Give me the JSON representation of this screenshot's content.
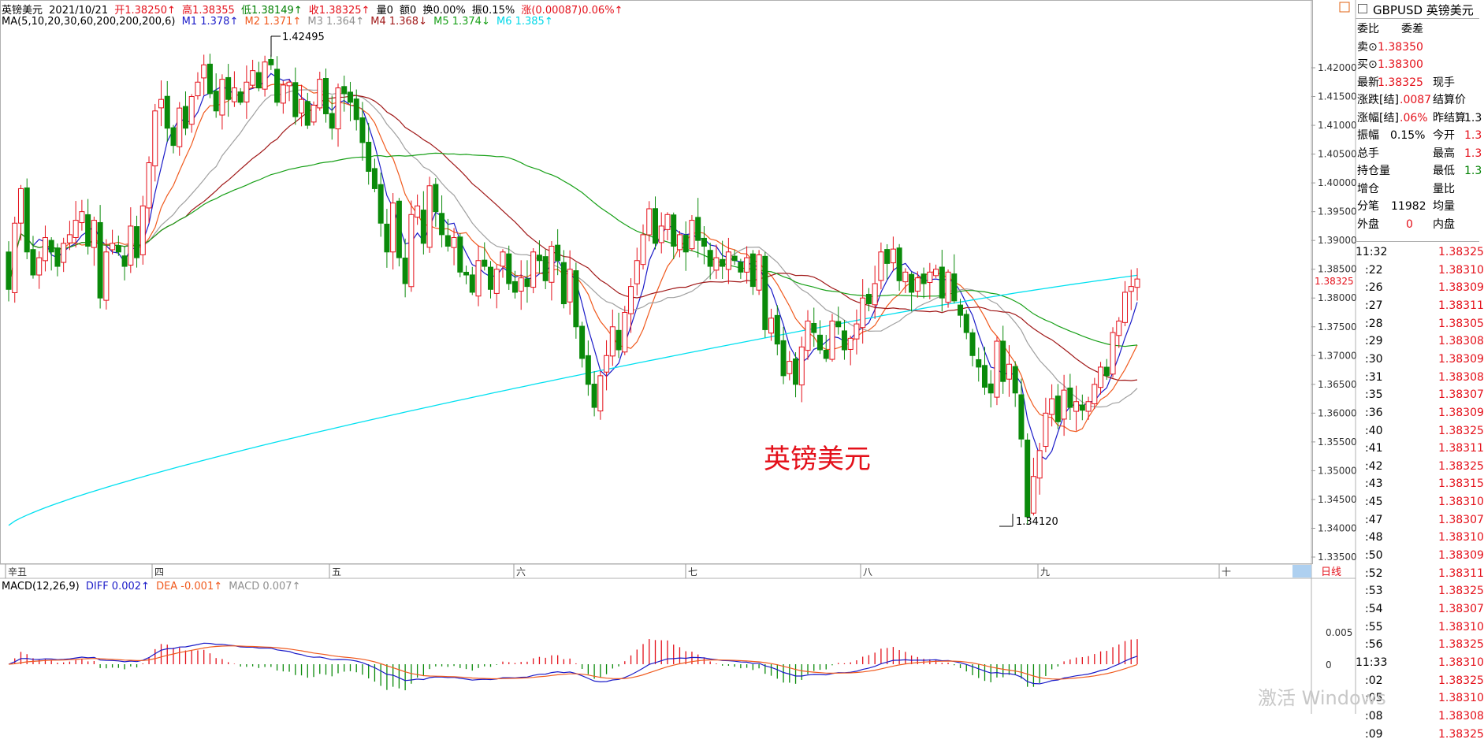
{
  "header": {
    "name": "英镑美元",
    "date": "2021/10/21",
    "open_label": "开",
    "open": "1.38250↑",
    "high_label": "高",
    "high": "1.38355",
    "low_label": "低",
    "low": "1.38149↑",
    "close_label": "收",
    "close": "1.38325↑",
    "vol": "量0",
    "amount": "额0",
    "turnover": "换0.00%",
    "amplitude": "振0.15%",
    "change": "涨(0.00087)0.06%↑"
  },
  "ma_legend": {
    "label": "MA(5,10,20,30,60,200,200,200,6)",
    "m1": "M1 1.378↑",
    "m2": "M2 1.371↑",
    "m3": "M3 1.364↑",
    "m4": "M4 1.368↓",
    "m5": "M5 1.374↓",
    "m6": "M6 1.385↑",
    "colors": {
      "m1": "#1b1bc8",
      "m2": "#f05a1e",
      "m3": "#a0a0a0",
      "m4": "#a01818",
      "m5": "#18a018",
      "m6": "#00e0f0"
    }
  },
  "chart_title": "英镑美元",
  "annot_high": "1.42495",
  "annot_low": "1.34120",
  "price_axis": [
    "1.42000",
    "1.41500",
    "1.41000",
    "1.40500",
    "1.40000",
    "1.39500",
    "1.39000",
    "1.38500",
    "1.38000",
    "1.37500",
    "1.37000",
    "1.36500",
    "1.36000",
    "1.35500",
    "1.35000",
    "1.34500",
    "1.34000",
    "1.33500"
  ],
  "current_price_tag": "1.38325",
  "date_axis": [
    "辛丑",
    "四",
    "五",
    "六",
    "七",
    "八",
    "九",
    "十"
  ],
  "period_button": "日线",
  "macd_legend": {
    "label": "MACD(12,26,9)",
    "diff": "DIFF 0.002↑",
    "dea": "DEA -0.001↑",
    "macd": "MACD 0.007↑"
  },
  "macd_axis": [
    "0.005",
    "0"
  ],
  "right_panel": {
    "symbol": "GBPUSD 英镑美元",
    "rows": [
      {
        "l": "委比",
        "r": "委差"
      },
      {
        "l": "卖⊙",
        "lv": "1.38350",
        "lc": "red"
      },
      {
        "l": "买⊙",
        "lv": "1.38300",
        "lc": "red"
      },
      {
        "l": "最新",
        "lv": "1.38325",
        "lc": "red",
        "r": "现手"
      },
      {
        "l": "涨跌[结]",
        "lv": ".0087",
        "lc": "red",
        "r": "结算价"
      },
      {
        "l": "涨幅[结]",
        "lv": ".06%",
        "lc": "red",
        "r": "昨结算",
        "rv": "1.3",
        "rc": "black"
      },
      {
        "l": "振幅",
        "lv": "0.15%",
        "lc": "black",
        "r": "今开",
        "rv": "1.3",
        "rc": "red"
      },
      {
        "l": "总手",
        "r": "最高",
        "rv": "1.3",
        "rc": "red"
      },
      {
        "l": "持仓量",
        "r": "最低",
        "rv": "1.3",
        "rc": "green"
      },
      {
        "l": "增仓",
        "r": "量比"
      },
      {
        "l": "分笔",
        "lv": "11982",
        "lc": "black",
        "r": "均量"
      },
      {
        "l": "外盘",
        "lv": "0",
        "lc": "red",
        "r": "内盘"
      }
    ],
    "ticks": [
      {
        "t": "11:32",
        "p": "1.38325"
      },
      {
        "t": ":22",
        "p": "1.38310"
      },
      {
        "t": ":26",
        "p": "1.38309"
      },
      {
        "t": ":27",
        "p": "1.38311"
      },
      {
        "t": ":28",
        "p": "1.38305"
      },
      {
        "t": ":29",
        "p": "1.38308"
      },
      {
        "t": ":30",
        "p": "1.38309"
      },
      {
        "t": ":31",
        "p": "1.38308"
      },
      {
        "t": ":35",
        "p": "1.38307"
      },
      {
        "t": ":36",
        "p": "1.38309"
      },
      {
        "t": ":40",
        "p": "1.38325"
      },
      {
        "t": ":41",
        "p": "1.38311"
      },
      {
        "t": ":42",
        "p": "1.38325"
      },
      {
        "t": ":43",
        "p": "1.38315"
      },
      {
        "t": ":45",
        "p": "1.38310"
      },
      {
        "t": ":47",
        "p": "1.38307"
      },
      {
        "t": ":48",
        "p": "1.38310"
      },
      {
        "t": ":50",
        "p": "1.38309"
      },
      {
        "t": ":52",
        "p": "1.38311"
      },
      {
        "t": ":53",
        "p": "1.38325"
      },
      {
        "t": ":54",
        "p": "1.38307"
      },
      {
        "t": ":55",
        "p": "1.38310"
      },
      {
        "t": ":56",
        "p": "1.38325"
      },
      {
        "t": "11:33",
        "p": "1.38310"
      },
      {
        "t": ":02",
        "p": "1.38325"
      },
      {
        "t": ":05",
        "p": "1.38310"
      },
      {
        "t": ":08",
        "p": "1.38308"
      },
      {
        "t": ":09",
        "p": "1.38325"
      }
    ]
  },
  "watermark": "激活 Windows",
  "candles_close": [
    1.3815,
    1.393,
    1.399,
    1.388,
    1.384,
    1.387,
    1.3905,
    1.388,
    1.3855,
    1.3895,
    1.391,
    1.3935,
    1.395,
    1.389,
    1.3935,
    1.38,
    1.388,
    1.3895,
    1.388,
    1.3855,
    1.3925,
    1.387,
    1.396,
    1.4035,
    1.4125,
    1.4145,
    1.4095,
    1.4065,
    1.413,
    1.4095,
    1.415,
    1.4175,
    1.4205,
    1.4155,
    1.4125,
    1.418,
    1.4145,
    1.4165,
    1.414,
    1.4175,
    1.4195,
    1.4165,
    1.421,
    1.4205,
    1.414,
    1.417,
    1.4175,
    1.4115,
    1.4145,
    1.41,
    1.4135,
    1.418,
    1.412,
    1.4095,
    1.4165,
    1.4155,
    1.414,
    1.411,
    1.407,
    1.402,
    1.399,
    1.393,
    1.388,
    1.3965,
    1.387,
    1.3825,
    1.3945,
    1.396,
    1.3895,
    1.3995,
    1.395,
    1.391,
    1.389,
    1.3905,
    1.3845,
    1.384,
    1.381,
    1.3865,
    1.3855,
    1.3815,
    1.385,
    1.388,
    1.3825,
    1.381,
    1.3835,
    1.382,
    1.388,
    1.3865,
    1.383,
    1.389,
    1.3865,
    1.379,
    1.385,
    1.375,
    1.3695,
    1.365,
    1.361,
    1.3665,
    1.37,
    1.375,
    1.371,
    1.3775,
    1.382,
    1.3865,
    1.391,
    1.3955,
    1.3895,
    1.3925,
    1.3945,
    1.389,
    1.391,
    1.388,
    1.3935,
    1.39,
    1.389,
    1.3855,
    1.387,
    1.3855,
    1.388,
    1.3865,
    1.3845,
    1.387,
    1.382,
    1.3875,
    1.3745,
    1.3765,
    1.372,
    1.3665,
    1.369,
    1.365,
    1.3715,
    1.376,
    1.374,
    1.371,
    1.3695,
    1.376,
    1.375,
    1.371,
    1.373,
    1.3755,
    1.38,
    1.379,
    1.3825,
    1.388,
    1.386,
    1.3885,
    1.383,
    1.3845,
    1.381,
    1.3835,
    1.3825,
    1.3845,
    1.385,
    1.38,
    1.3845,
    1.3795,
    1.377,
    1.374,
    1.37,
    1.368,
    1.3645,
    1.3635,
    1.3725,
    1.3655,
    1.3685,
    1.3635,
    1.3555,
    1.342,
    1.349,
    1.3535,
    1.36,
    1.3625,
    1.3585,
    1.364,
    1.361,
    1.362,
    1.3605,
    1.362,
    1.365,
    1.368,
    1.3665,
    1.374,
    1.376,
    1.381,
    1.382,
    1.3833
  ]
}
